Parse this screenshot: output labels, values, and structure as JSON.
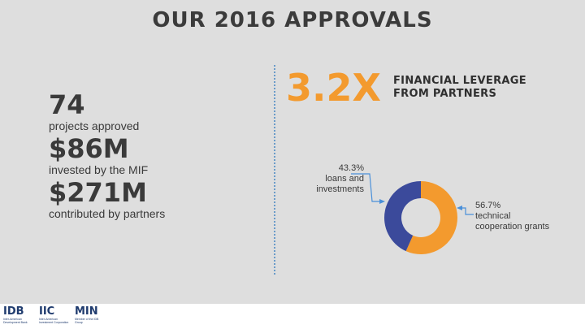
{
  "title": "OUR 2016 APPROVALS",
  "stats": [
    {
      "value": "74",
      "label": "projects approved"
    },
    {
      "value": "$86M",
      "label": "invested by the MIF"
    },
    {
      "value": "$271M",
      "label": "contributed by partners"
    }
  ],
  "leverage": {
    "value": "3.2X",
    "label": "FINANCIAL LEVERAGE FROM PARTNERS"
  },
  "colors": {
    "orange": "#f39a2e",
    "blue": "#3b4a9b",
    "arrow": "#4a90d9"
  },
  "chart_data": {
    "type": "pie",
    "donut": true,
    "title": "",
    "slices": [
      {
        "label": "loans and investments",
        "percent_label": "43.3%",
        "value": 43.3,
        "color": "#3b4a9b"
      },
      {
        "label": "technical cooperation grants",
        "percent_label": "56.7%",
        "value": 56.7,
        "color": "#f39a2e"
      }
    ]
  },
  "footer": {
    "logos": [
      {
        "name": "IDB",
        "text": "IDB",
        "sub": "Inter-American Development Bank"
      },
      {
        "name": "IIC",
        "text": "IIC",
        "sub": "Inter-American Investment Corporation"
      },
      {
        "name": "MIF",
        "text": "MIN",
        "sub": "Member of the IDB Group"
      }
    ]
  }
}
